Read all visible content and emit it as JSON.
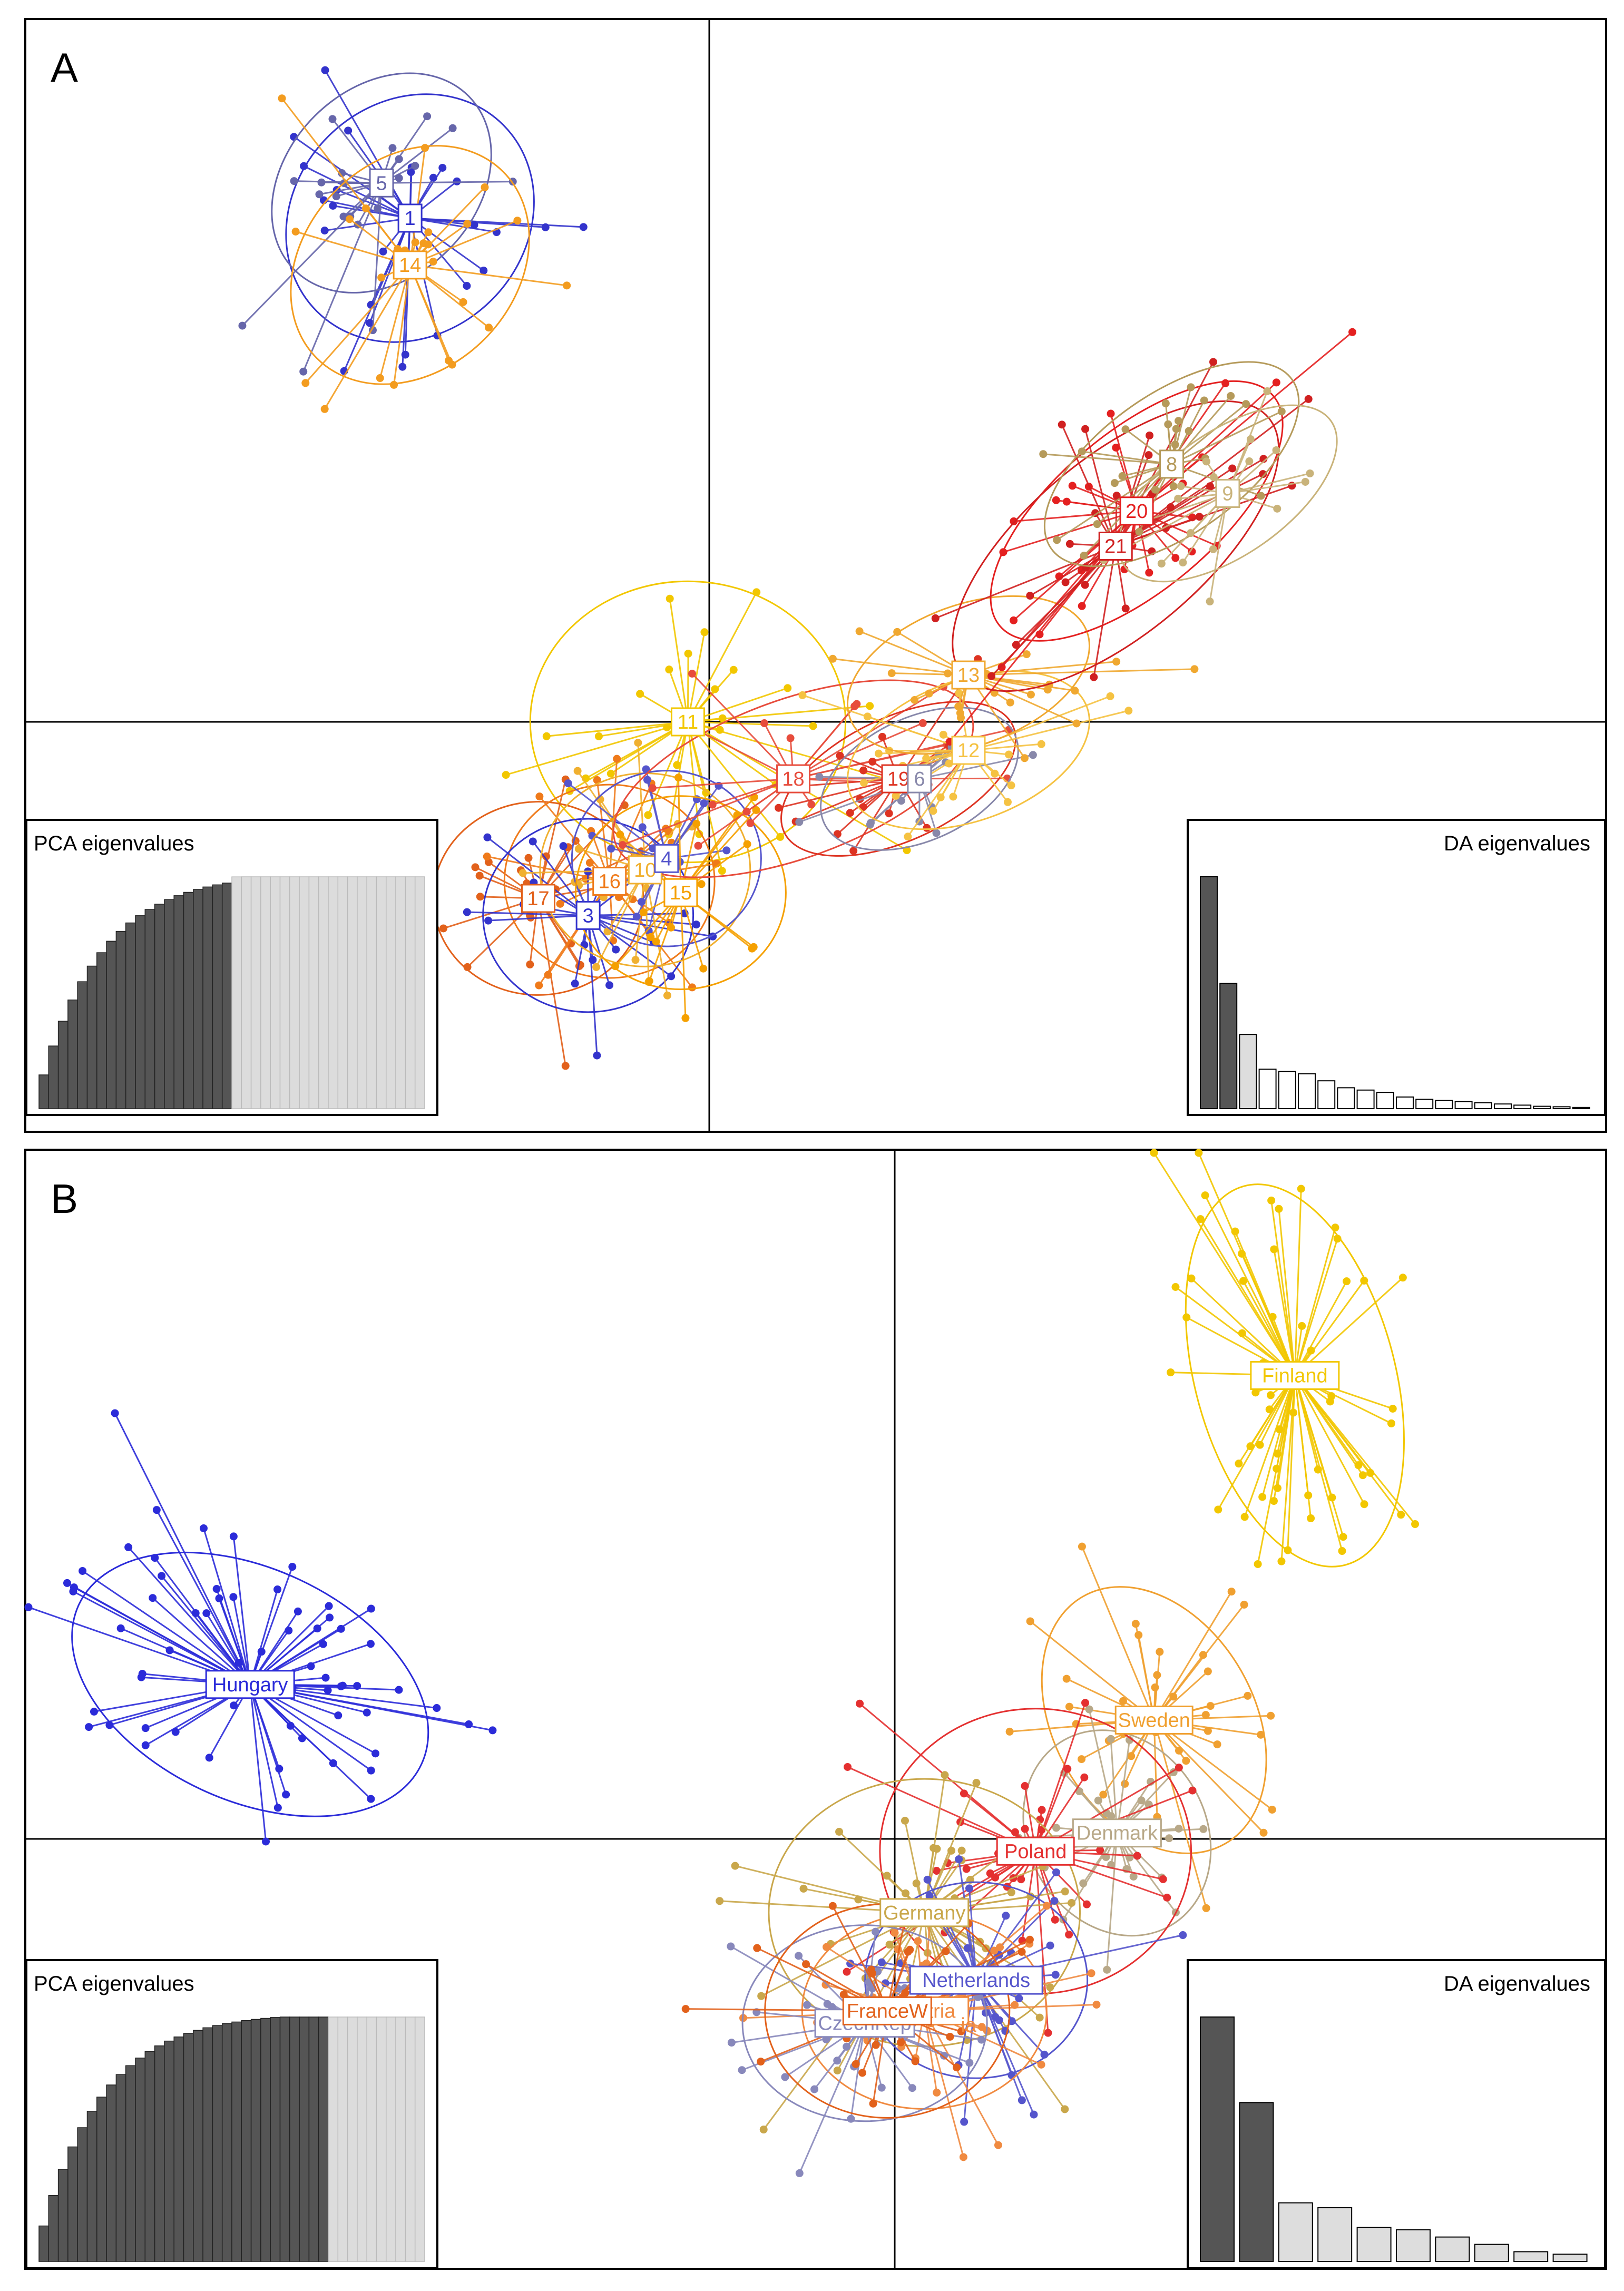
{
  "chart_data": [
    {
      "type": "scatter",
      "panel": "A",
      "title": "A",
      "description_type": "DAPC scatter plot (discriminant analysis of principal components) by cluster",
      "xlabel": "",
      "ylabel": "",
      "xlim": [
        -4.8,
        6.4
      ],
      "ylim": [
        -3.6,
        6.0
      ],
      "grid": false,
      "series": [
        {
          "name": "1",
          "color": "#3333cc",
          "center": [
            -2.1,
            4.3
          ],
          "spread": [
            0.55,
            0.75
          ],
          "angle": -45,
          "n": 30
        },
        {
          "name": "5",
          "color": "#6666aa",
          "center": [
            -2.3,
            4.6
          ],
          "spread": [
            0.45,
            0.7
          ],
          "angle": -45,
          "n": 22
        },
        {
          "name": "14",
          "color": "#f39c1f",
          "center": [
            -2.1,
            3.9
          ],
          "spread": [
            0.5,
            0.75
          ],
          "angle": -45,
          "n": 26
        },
        {
          "name": "11",
          "color": "#f2c700",
          "center": [
            -0.15,
            0.0
          ],
          "spread": [
            0.75,
            0.8
          ],
          "angle": 0,
          "n": 30
        },
        {
          "name": "17",
          "color": "#e2611b",
          "center": [
            -1.2,
            -1.55
          ],
          "spread": [
            0.5,
            0.55
          ],
          "angle": 0,
          "n": 24
        },
        {
          "name": "16",
          "color": "#ef7a1a",
          "center": [
            -0.7,
            -1.4
          ],
          "spread": [
            0.5,
            0.55
          ],
          "angle": 0,
          "n": 22
        },
        {
          "name": "3",
          "color": "#3333cc",
          "center": [
            -0.85,
            -1.7
          ],
          "spread": [
            0.5,
            0.55
          ],
          "angle": 0,
          "n": 22
        },
        {
          "name": "10",
          "color": "#f0b030",
          "center": [
            -0.45,
            -1.3
          ],
          "spread": [
            0.5,
            0.55
          ],
          "angle": 0,
          "n": 20
        },
        {
          "name": "4",
          "color": "#5555cc",
          "center": [
            -0.3,
            -1.2
          ],
          "spread": [
            0.45,
            0.5
          ],
          "angle": 0,
          "n": 18
        },
        {
          "name": "15",
          "color": "#f5a000",
          "center": [
            -0.2,
            -1.5
          ],
          "spread": [
            0.5,
            0.55
          ],
          "angle": 0,
          "n": 20
        },
        {
          "name": "18",
          "color": "#e74c3c",
          "center": [
            0.6,
            -0.5
          ],
          "spread": [
            0.9,
            0.45
          ],
          "angle": 20,
          "n": 20
        },
        {
          "name": "19",
          "color": "#dd3322",
          "center": [
            1.35,
            -0.5
          ],
          "spread": [
            0.6,
            0.35
          ],
          "angle": 25,
          "n": 18
        },
        {
          "name": "6",
          "color": "#8888aa",
          "center": [
            1.5,
            -0.5
          ],
          "spread": [
            0.5,
            0.35
          ],
          "angle": 25,
          "n": 14
        },
        {
          "name": "12",
          "color": "#f5c242",
          "center": [
            1.85,
            -0.25
          ],
          "spread": [
            0.6,
            0.4
          ],
          "angle": 20,
          "n": 22
        },
        {
          "name": "13",
          "color": "#f0a830",
          "center": [
            1.85,
            0.4
          ],
          "spread": [
            0.6,
            0.4
          ],
          "angle": 20,
          "n": 22
        },
        {
          "name": "20",
          "color": "#e42020",
          "center": [
            3.05,
            1.8
          ],
          "spread": [
            0.85,
            0.45
          ],
          "angle": 40,
          "n": 30
        },
        {
          "name": "21",
          "color": "#d02020",
          "center": [
            2.9,
            1.5
          ],
          "spread": [
            0.95,
            0.5
          ],
          "angle": 40,
          "n": 28
        },
        {
          "name": "8",
          "color": "#b59a5a",
          "center": [
            3.3,
            2.2
          ],
          "spread": [
            0.7,
            0.4
          ],
          "angle": 35,
          "n": 24
        },
        {
          "name": "9",
          "color": "#c9b37a",
          "center": [
            3.7,
            1.95
          ],
          "spread": [
            0.6,
            0.35
          ],
          "angle": 35,
          "n": 20
        }
      ],
      "insets": {
        "pca": {
          "title": "PCA eigenvalues",
          "retained": 20,
          "total": 40
        },
        "da": {
          "title": "DA eigenvalues",
          "values": [
            100,
            54,
            32,
            17,
            16,
            15,
            12,
            9,
            8,
            7,
            5,
            4,
            3.5,
            3,
            2.5,
            2,
            1.5,
            1,
            0.8,
            0.5
          ],
          "dark": 2,
          "mid": 1
        }
      }
    },
    {
      "type": "scatter",
      "panel": "B",
      "title": "B",
      "description_type": "DAPC scatter plot by country",
      "xlabel": "",
      "ylabel": "",
      "xlim": [
        -5.8,
        4.8
      ],
      "ylim": [
        -3.5,
        5.8
      ],
      "grid": false,
      "series": [
        {
          "name": "Hungary",
          "color": "#2b2bd9",
          "center": [
            -4.3,
            1.3
          ],
          "spread": [
            0.85,
            0.65
          ],
          "angle": -25,
          "n": 70
        },
        {
          "name": "Finland",
          "color": "#f2c700",
          "center": [
            2.7,
            3.9
          ],
          "spread": [
            0.45,
            1.1
          ],
          "angle": 15,
          "n": 60
        },
        {
          "name": "Sweden",
          "color": "#f0a030",
          "center": [
            1.75,
            1.0
          ],
          "spread": [
            0.45,
            0.8
          ],
          "angle": 30,
          "n": 40
        },
        {
          "name": "Denmark",
          "color": "#b8a888",
          "center": [
            1.5,
            0.05
          ],
          "spread": [
            0.4,
            0.6
          ],
          "angle": 30,
          "n": 30
        },
        {
          "name": "Poland",
          "color": "#e43030",
          "center": [
            0.95,
            -0.1
          ],
          "spread": [
            0.7,
            0.8
          ],
          "angle": 0,
          "n": 40
        },
        {
          "name": "Germany",
          "color": "#c9a74b",
          "center": [
            0.2,
            -0.6
          ],
          "spread": [
            0.7,
            0.75
          ],
          "angle": 0,
          "n": 45
        },
        {
          "name": "Netherlands",
          "color": "#5555cc",
          "center": [
            0.55,
            -1.15
          ],
          "spread": [
            0.5,
            0.55
          ],
          "angle": 0,
          "n": 35
        },
        {
          "name": "Austria",
          "color": "#f08a40",
          "center": [
            0.2,
            -1.4
          ],
          "spread": [
            0.55,
            0.55
          ],
          "angle": 0,
          "n": 35
        },
        {
          "name": "CzechRep",
          "color": "#8888bb",
          "center": [
            -0.2,
            -1.5
          ],
          "spread": [
            0.55,
            0.55
          ],
          "angle": 0,
          "n": 35
        },
        {
          "name": "FranceW",
          "color": "#e2611b",
          "center": [
            -0.05,
            -1.4
          ],
          "spread": [
            0.55,
            0.6
          ],
          "angle": 0,
          "n": 35
        }
      ],
      "visible_labels": [
        "Hungary",
        "Finland",
        "Sweden",
        "Denmark",
        "Poland",
        "Germany",
        "Netherlands",
        "CzechRep",
        "FranceW"
      ],
      "partial_label": "ia",
      "insets": {
        "pca": {
          "title": "PCA eigenvalues",
          "retained": 30,
          "total": 40
        },
        "da": {
          "title": "DA eigenvalues",
          "values": [
            100,
            65,
            24,
            22,
            14,
            13,
            10,
            7,
            4,
            3
          ],
          "dark": 2,
          "mid": 0
        }
      }
    }
  ]
}
